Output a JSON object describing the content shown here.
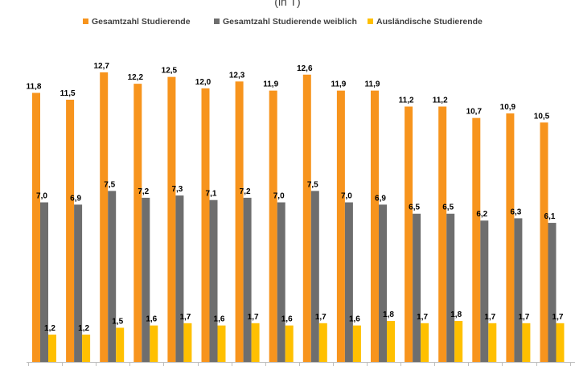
{
  "chart_data": {
    "type": "bar",
    "subtitle": "(in T)",
    "categories": [
      "",
      "",
      "",
      "",
      "",
      "",
      "",
      "",
      "",
      "",
      "",
      "",
      "",
      "",
      "",
      ""
    ],
    "series": [
      {
        "name": "Gesamtzahl Studierende",
        "color": "#F7941D",
        "values": [
          11.8,
          11.5,
          12.7,
          12.2,
          12.5,
          12.0,
          12.3,
          11.9,
          12.6,
          11.9,
          11.9,
          11.2,
          11.2,
          10.7,
          10.9,
          10.5
        ],
        "labels": [
          "11,8",
          "11,5",
          "12,7",
          "12,2",
          "12,5",
          "12,0",
          "12,3",
          "11,9",
          "12,6",
          "11,9",
          "11,9",
          "11,2",
          "11,2",
          "10,7",
          "10,9",
          "10,5"
        ]
      },
      {
        "name": "Gesamtzahl Studierende weiblich",
        "color": "#6E6E6E",
        "values": [
          7.0,
          6.9,
          7.5,
          7.2,
          7.3,
          7.1,
          7.2,
          7.0,
          7.5,
          7.0,
          6.9,
          6.5,
          6.5,
          6.2,
          6.3,
          6.1
        ],
        "labels": [
          "7,0",
          "6,9",
          "7,5",
          "7,2",
          "7,3",
          "7,1",
          "7,2",
          "7,0",
          "7,5",
          "7,0",
          "6,9",
          "6,5",
          "6,5",
          "6,2",
          "6,3",
          "6,1"
        ]
      },
      {
        "name": "Ausländische Studierende",
        "color": "#FFC000",
        "values": [
          1.2,
          1.2,
          1.5,
          1.6,
          1.7,
          1.6,
          1.7,
          1.6,
          1.7,
          1.6,
          1.8,
          1.7,
          1.8,
          1.7,
          1.7,
          1.7
        ],
        "labels": [
          "1,2",
          "1,2",
          "1,5",
          "1,6",
          "1,7",
          "1,6",
          "1,7",
          "1,6",
          "1,7",
          "1,6",
          "1,8",
          "1,7",
          "1,8",
          "1,7",
          "1,7",
          "1,7"
        ]
      }
    ],
    "ylim": [
      0,
      14
    ],
    "grid": false,
    "legend_position": "top"
  }
}
